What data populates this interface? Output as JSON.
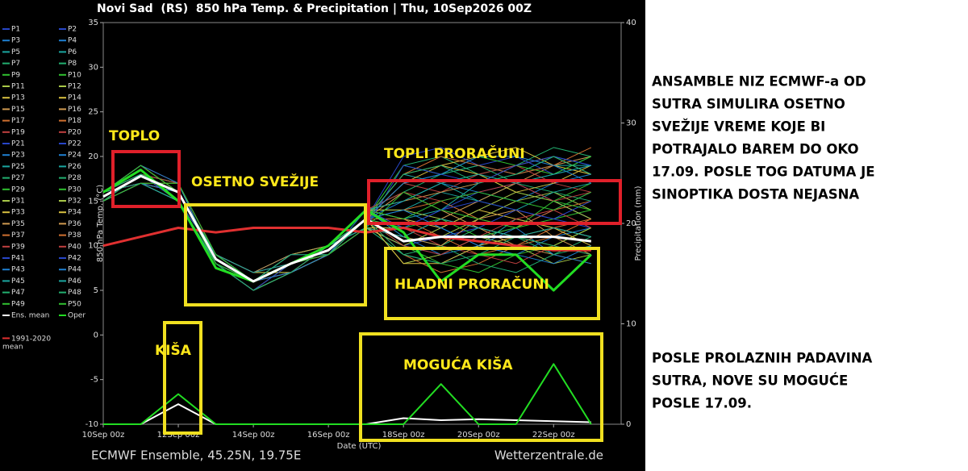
{
  "chart_data": {
    "type": "line",
    "title": "Novi Sad  (RS)  850 hPa Temp. & Precipitation | Thu, 10Sep2026 00Z",
    "y_label": "850 hPa Temp. (°C)",
    "y2_label": "Precipitation (mm)",
    "x_label": "Date (UTC)",
    "source_left": "ECMWF Ensemble, 45.25N, 19.75E",
    "source_right": "Wetterzentrale.de",
    "x": [
      0,
      1,
      2,
      3,
      4,
      5,
      6,
      7,
      8,
      9,
      10,
      11,
      12,
      13
    ],
    "xlim": [
      0,
      13.8
    ],
    "xticks": [
      {
        "value": 0,
        "label": "10Sep 00z"
      },
      {
        "value": 2,
        "label": "12Sep 00z"
      },
      {
        "value": 4,
        "label": "14Sep 00z"
      },
      {
        "value": 6,
        "label": "16Sep 00z"
      },
      {
        "value": 8,
        "label": "18Sep 00z"
      },
      {
        "value": 10,
        "label": "20Sep 00z"
      },
      {
        "value": 12,
        "label": "22Sep 00z"
      }
    ],
    "ylim": [
      -10,
      35
    ],
    "yticks": [
      -10,
      -5,
      0,
      5,
      10,
      15,
      20,
      25,
      30,
      35
    ],
    "y2lim": [
      0,
      40
    ],
    "y2ticks": [
      0,
      10,
      20,
      30,
      40
    ],
    "grid": false,
    "series": [
      {
        "name": "P1",
        "color": "#2846c8",
        "values": [
          15,
          18,
          16,
          9,
          6,
          8,
          10,
          13,
          12,
          14,
          16,
          17,
          15,
          13
        ]
      },
      {
        "name": "P2",
        "color": "#2846c8",
        "values": [
          16,
          17,
          15,
          8,
          5,
          7,
          9,
          12,
          10,
          9,
          11,
          12,
          14,
          16
        ]
      },
      {
        "name": "P3",
        "color": "#1e7fd0",
        "values": [
          15,
          18,
          17,
          9,
          7,
          9,
          10,
          14,
          13,
          12,
          10,
          9,
          11,
          12
        ]
      },
      {
        "name": "P4",
        "color": "#1e7fd0",
        "values": [
          16,
          19,
          16,
          8,
          6,
          8,
          9,
          13,
          17,
          18,
          19,
          18,
          20,
          19
        ]
      },
      {
        "name": "P5",
        "color": "#1aa6a0",
        "values": [
          15,
          17,
          15,
          9,
          6,
          7,
          9,
          12,
          9,
          8,
          10,
          13,
          12,
          11
        ]
      },
      {
        "name": "P6",
        "color": "#1aa6a0",
        "values": [
          16,
          18,
          16,
          8,
          5,
          8,
          10,
          13,
          14,
          16,
          15,
          17,
          18,
          20
        ]
      },
      {
        "name": "P7",
        "color": "#22b070",
        "values": [
          15,
          17,
          16,
          9,
          6,
          8,
          10,
          14,
          11,
          10,
          12,
          11,
          9,
          10
        ]
      },
      {
        "name": "P8",
        "color": "#22b070",
        "values": [
          16,
          18,
          17,
          8,
          6,
          7,
          9,
          13,
          19,
          20,
          18,
          19,
          21,
          20
        ]
      },
      {
        "name": "P9",
        "color": "#30c030",
        "values": [
          15,
          18,
          16,
          9,
          7,
          8,
          10,
          13,
          10,
          8,
          7,
          9,
          10,
          12
        ]
      },
      {
        "name": "P10",
        "color": "#30c030",
        "values": [
          16,
          17,
          15,
          8,
          6,
          9,
          10,
          14,
          15,
          17,
          18,
          16,
          15,
          17
        ]
      },
      {
        "name": "P11",
        "color": "#a8c848",
        "values": [
          15,
          18,
          16,
          9,
          6,
          8,
          9,
          12,
          12,
          11,
          13,
          15,
          16,
          14
        ]
      },
      {
        "name": "P12",
        "color": "#a8c848",
        "values": [
          16,
          19,
          16,
          8,
          5,
          7,
          9,
          13,
          8,
          9,
          11,
          10,
          8,
          9
        ]
      },
      {
        "name": "P13",
        "color": "#d8c040",
        "values": [
          15,
          17,
          16,
          9,
          6,
          8,
          10,
          13,
          18,
          19,
          20,
          21,
          19,
          18
        ]
      },
      {
        "name": "P14",
        "color": "#d8c040",
        "values": [
          16,
          18,
          15,
          8,
          6,
          8,
          10,
          14,
          13,
          12,
          14,
          13,
          12,
          11
        ]
      },
      {
        "name": "P15",
        "color": "#d09a50",
        "values": [
          15,
          18,
          17,
          9,
          7,
          9,
          10,
          13,
          16,
          14,
          12,
          10,
          9,
          8
        ]
      },
      {
        "name": "P16",
        "color": "#d09a50",
        "values": [
          16,
          17,
          16,
          8,
          6,
          7,
          9,
          12,
          11,
          13,
          15,
          17,
          19,
          20
        ]
      },
      {
        "name": "P17",
        "color": "#d07030",
        "values": [
          15,
          18,
          16,
          9,
          6,
          8,
          10,
          14,
          14,
          15,
          13,
          12,
          14,
          15
        ]
      },
      {
        "name": "P18",
        "color": "#d07030",
        "values": [
          16,
          18,
          15,
          8,
          5,
          8,
          9,
          13,
          9,
          7,
          8,
          10,
          11,
          13
        ]
      },
      {
        "name": "P19",
        "color": "#c04040",
        "values": [
          15,
          17,
          16,
          9,
          6,
          8,
          10,
          13,
          17,
          16,
          18,
          19,
          17,
          16
        ]
      },
      {
        "name": "P20",
        "color": "#c04040",
        "values": [
          16,
          19,
          17,
          8,
          6,
          7,
          10,
          14,
          12,
          10,
          9,
          8,
          10,
          9
        ]
      },
      {
        "name": "P21",
        "color": "#2846c8",
        "values": [
          15,
          18,
          16,
          9,
          7,
          8,
          9,
          13,
          20,
          21,
          19,
          20,
          18,
          19
        ]
      },
      {
        "name": "P22",
        "color": "#2846c8",
        "values": [
          16,
          17,
          15,
          8,
          6,
          8,
          10,
          12,
          10,
          11,
          12,
          14,
          13,
          12
        ]
      },
      {
        "name": "P23",
        "color": "#1e7fd0",
        "values": [
          15,
          18,
          16,
          9,
          6,
          9,
          10,
          13,
          15,
          17,
          16,
          15,
          17,
          18
        ]
      },
      {
        "name": "P24",
        "color": "#1e7fd0",
        "values": [
          16,
          18,
          17,
          8,
          5,
          7,
          9,
          14,
          11,
          9,
          10,
          12,
          9,
          8
        ]
      },
      {
        "name": "P25",
        "color": "#1aa6a0",
        "values": [
          15,
          17,
          16,
          9,
          6,
          8,
          10,
          13,
          18,
          17,
          15,
          14,
          16,
          17
        ]
      },
      {
        "name": "P26",
        "color": "#1aa6a0",
        "values": [
          16,
          19,
          16,
          8,
          6,
          8,
          9,
          13,
          13,
          14,
          17,
          18,
          19,
          19
        ]
      },
      {
        "name": "P27",
        "color": "#22b070",
        "values": [
          15,
          18,
          15,
          9,
          7,
          7,
          10,
          12,
          9,
          10,
          8,
          7,
          9,
          11
        ]
      },
      {
        "name": "P28",
        "color": "#22b070",
        "values": [
          16,
          17,
          16,
          8,
          6,
          8,
          10,
          14,
          16,
          18,
          19,
          17,
          16,
          15
        ]
      },
      {
        "name": "P29",
        "color": "#30c030",
        "values": [
          15,
          18,
          17,
          9,
          6,
          9,
          10,
          13,
          12,
          13,
          11,
          12,
          13,
          14
        ]
      },
      {
        "name": "P30",
        "color": "#30c030",
        "values": [
          16,
          18,
          16,
          8,
          5,
          7,
          9,
          13,
          19,
          18,
          20,
          19,
          18,
          20
        ]
      },
      {
        "name": "P31",
        "color": "#a8c848",
        "values": [
          15,
          17,
          15,
          9,
          6,
          8,
          10,
          12,
          10,
          12,
          14,
          16,
          15,
          13
        ]
      },
      {
        "name": "P32",
        "color": "#a8c848",
        "values": [
          16,
          19,
          16,
          8,
          6,
          8,
          10,
          14,
          14,
          13,
          12,
          11,
          10,
          12
        ]
      },
      {
        "name": "P33",
        "color": "#d8c040",
        "values": [
          15,
          18,
          16,
          9,
          7,
          7,
          9,
          13,
          17,
          19,
          18,
          16,
          17,
          19
        ]
      },
      {
        "name": "P34",
        "color": "#d8c040",
        "values": [
          16,
          17,
          17,
          8,
          6,
          8,
          10,
          13,
          8,
          8,
          10,
          11,
          12,
          10
        ]
      },
      {
        "name": "P35",
        "color": "#d09a50",
        "values": [
          15,
          18,
          16,
          9,
          6,
          9,
          10,
          14,
          15,
          16,
          17,
          19,
          20,
          18
        ]
      },
      {
        "name": "P36",
        "color": "#d09a50",
        "values": [
          16,
          18,
          15,
          8,
          5,
          7,
          9,
          12,
          11,
          10,
          13,
          14,
          11,
          9
        ]
      },
      {
        "name": "P37",
        "color": "#d07030",
        "values": [
          15,
          17,
          16,
          9,
          6,
          8,
          10,
          13,
          18,
          20,
          19,
          18,
          19,
          21
        ]
      },
      {
        "name": "P38",
        "color": "#d07030",
        "values": [
          16,
          19,
          16,
          8,
          6,
          8,
          9,
          13,
          13,
          11,
          9,
          10,
          12,
          13
        ]
      },
      {
        "name": "P39",
        "color": "#c04040",
        "values": [
          15,
          18,
          17,
          9,
          7,
          8,
          10,
          14,
          16,
          15,
          16,
          17,
          15,
          16
        ]
      },
      {
        "name": "P40",
        "color": "#c04040",
        "values": [
          16,
          17,
          16,
          8,
          6,
          7,
          10,
          13,
          10,
          9,
          11,
          13,
          14,
          12
        ]
      },
      {
        "name": "P41",
        "color": "#2846c8",
        "values": [
          15,
          18,
          15,
          9,
          6,
          9,
          9,
          12,
          19,
          18,
          17,
          19,
          20,
          19
        ]
      },
      {
        "name": "P42",
        "color": "#2846c8",
        "values": [
          16,
          18,
          16,
          8,
          5,
          8,
          10,
          14,
          12,
          14,
          15,
          14,
          13,
          15
        ]
      },
      {
        "name": "P43",
        "color": "#1e7fd0",
        "values": [
          15,
          17,
          16,
          9,
          6,
          8,
          10,
          13,
          14,
          12,
          10,
          9,
          8,
          10
        ]
      },
      {
        "name": "P44",
        "color": "#1e7fd0",
        "values": [
          16,
          19,
          17,
          8,
          6,
          7,
          9,
          13,
          17,
          18,
          20,
          20,
          19,
          17
        ]
      },
      {
        "name": "P45",
        "color": "#1aa6a0",
        "values": [
          15,
          18,
          16,
          9,
          7,
          8,
          10,
          12,
          11,
          13,
          12,
          11,
          12,
          11
        ]
      },
      {
        "name": "P46",
        "color": "#1aa6a0",
        "values": [
          16,
          17,
          15,
          8,
          6,
          8,
          10,
          14,
          15,
          17,
          18,
          17,
          18,
          19
        ]
      },
      {
        "name": "P47",
        "color": "#22b070",
        "values": [
          15,
          18,
          16,
          9,
          6,
          9,
          9,
          13,
          9,
          8,
          9,
          11,
          10,
          9
        ]
      },
      {
        "name": "P48",
        "color": "#22b070",
        "values": [
          16,
          18,
          16,
          8,
          5,
          7,
          10,
          13,
          18,
          19,
          17,
          18,
          20,
          18
        ]
      },
      {
        "name": "P49",
        "color": "#30c030",
        "values": [
          15,
          17,
          17,
          9,
          6,
          8,
          10,
          14,
          13,
          15,
          16,
          15,
          14,
          16
        ]
      },
      {
        "name": "P50",
        "color": "#30c030",
        "values": [
          16,
          19,
          16,
          8,
          6,
          8,
          9,
          12,
          16,
          14,
          13,
          12,
          15,
          14
        ]
      },
      {
        "name": "Ens. mean",
        "color": "#ffffff",
        "values": [
          15.5,
          17.8,
          16,
          8.5,
          6,
          8,
          9.5,
          13,
          10.5,
          11,
          11,
          11,
          11,
          10.5
        ],
        "precip": [
          0,
          0,
          2,
          0,
          0,
          0,
          0,
          0,
          0.6,
          0.4,
          0.5,
          0.4,
          0.3,
          0.2
        ]
      },
      {
        "name": "Oper",
        "color": "#22dd22",
        "values": [
          16,
          18.5,
          15,
          7.5,
          6,
          8,
          10,
          14,
          11.5,
          6,
          9,
          9,
          5,
          9
        ],
        "precip": [
          0,
          0,
          3,
          0,
          0,
          0,
          0,
          0,
          0,
          4,
          0,
          0,
          6,
          0
        ]
      },
      {
        "name": "1991-2020 mean",
        "color": "#e03030",
        "values": [
          10,
          11,
          12,
          11.5,
          12,
          12,
          12,
          11.5,
          12,
          11,
          10.5,
          10,
          9.5,
          9.5
        ]
      }
    ],
    "annotations": [
      "TOPLO",
      "OSETNO SVEŽIJE",
      "TOPLI PRORAČUNI",
      "HLADNI PRORAČUNI",
      "KIŠA",
      "MOGUĆA KIŠA"
    ],
    "side_text": [
      [
        "ANSAMBLE NIZ ECMWF-a OD",
        "SUTRA SIMULIRA OSETNO",
        "SVEŽIJE VREME KOJE BI",
        "POTRAJALO BAREM DO OKO",
        "17.09. POSLE TOG DATUMA JE",
        "SINOPTIKA DOSTA NEJASNA"
      ],
      [
        "POSLE PROLAZNIH PADAVINA",
        "SUTRA, NOVE SU MOGUĆE",
        "POSLE 17.09."
      ]
    ]
  }
}
